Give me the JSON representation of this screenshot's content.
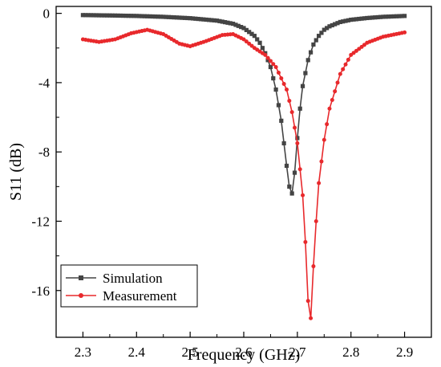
{
  "chart_data": {
    "type": "line",
    "xlabel": "Frequency (GHz)",
    "ylabel": "S11 (dB)",
    "xlim": [
      2.25,
      2.95
    ],
    "ylim": [
      -18.7,
      0.4
    ],
    "xticks": [
      2.3,
      2.4,
      2.5,
      2.6,
      2.7,
      2.8,
      2.9
    ],
    "yticks": [
      0,
      -4,
      -8,
      -12,
      -16
    ],
    "xtick_labels": [
      "2.3",
      "2.4",
      "2.5",
      "2.6",
      "2.7",
      "2.8",
      "2.9"
    ],
    "ytick_labels": [
      "0",
      "-4",
      "-8",
      "-12",
      "-16"
    ],
    "grid": false,
    "legend_position": "bottom-left",
    "series": [
      {
        "name": "Simulation",
        "color": "#444444",
        "marker": "square",
        "x": [
          2.3,
          2.35,
          2.4,
          2.45,
          2.5,
          2.55,
          2.58,
          2.6,
          2.62,
          2.63,
          2.64,
          2.65,
          2.66,
          2.67,
          2.68,
          2.685,
          2.69,
          2.695,
          2.7,
          2.705,
          2.71,
          2.72,
          2.73,
          2.74,
          2.75,
          2.76,
          2.78,
          2.8,
          2.83,
          2.86,
          2.9
        ],
        "y": [
          -0.1,
          -0.12,
          -0.15,
          -0.2,
          -0.28,
          -0.42,
          -0.6,
          -0.85,
          -1.3,
          -1.7,
          -2.3,
          -3.1,
          -4.4,
          -6.2,
          -8.8,
          -10.0,
          -10.4,
          -9.2,
          -7.2,
          -5.5,
          -4.2,
          -2.7,
          -1.8,
          -1.3,
          -0.95,
          -0.75,
          -0.5,
          -0.37,
          -0.27,
          -0.2,
          -0.15
        ]
      },
      {
        "name": "Measurement",
        "color": "#e8292c",
        "marker": "circle",
        "x": [
          2.3,
          2.33,
          2.36,
          2.39,
          2.42,
          2.45,
          2.48,
          2.5,
          2.53,
          2.56,
          2.58,
          2.6,
          2.62,
          2.64,
          2.66,
          2.68,
          2.69,
          2.7,
          2.71,
          2.715,
          2.72,
          2.725,
          2.73,
          2.735,
          2.74,
          2.75,
          2.76,
          2.78,
          2.8,
          2.83,
          2.86,
          2.9
        ],
        "y": [
          -1.5,
          -1.65,
          -1.5,
          -1.15,
          -0.95,
          -1.2,
          -1.75,
          -1.9,
          -1.6,
          -1.25,
          -1.2,
          -1.5,
          -2.0,
          -2.4,
          -3.1,
          -4.4,
          -5.7,
          -7.5,
          -10.5,
          -13.2,
          -16.6,
          -17.6,
          -14.6,
          -12.0,
          -9.8,
          -7.3,
          -5.5,
          -3.5,
          -2.4,
          -1.7,
          -1.35,
          -1.1
        ]
      }
    ]
  }
}
